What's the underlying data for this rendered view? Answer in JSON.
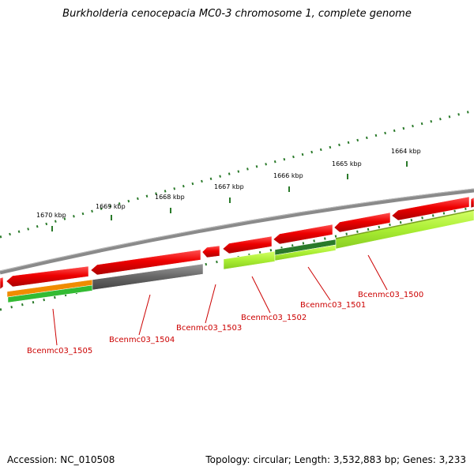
{
  "title": "Burkholderia cenocepacia MC0-3 chromosome 1, complete genome",
  "footer": {
    "accession": "Accession: NC_010508",
    "topology": "Topology: circular; Length: 3,532,883 bp; Genes: 3,233"
  },
  "ticks": [
    "1670 kbp",
    "1669 kbp",
    "1668 kbp",
    "1667 kbp",
    "1666 kbp",
    "1665 kbp",
    "1664 kbp"
  ],
  "genes": [
    "Bcenmc03_1505",
    "Bcenmc03_1504",
    "Bcenmc03_1503",
    "Bcenmc03_1502",
    "Bcenmc03_1501",
    "Bcenmc03_1500"
  ],
  "colors": {
    "backbone": "#8a8a8a",
    "gene_red": "#ee0000",
    "gene_gray": "#666666",
    "gene_orange": "#f08c00",
    "gene_green": "#33bb33",
    "gene_darkgreen": "#2a7a2a",
    "gene_lime": "#aaee33",
    "label": "#cc0000",
    "tick": "#2a7a2a"
  }
}
